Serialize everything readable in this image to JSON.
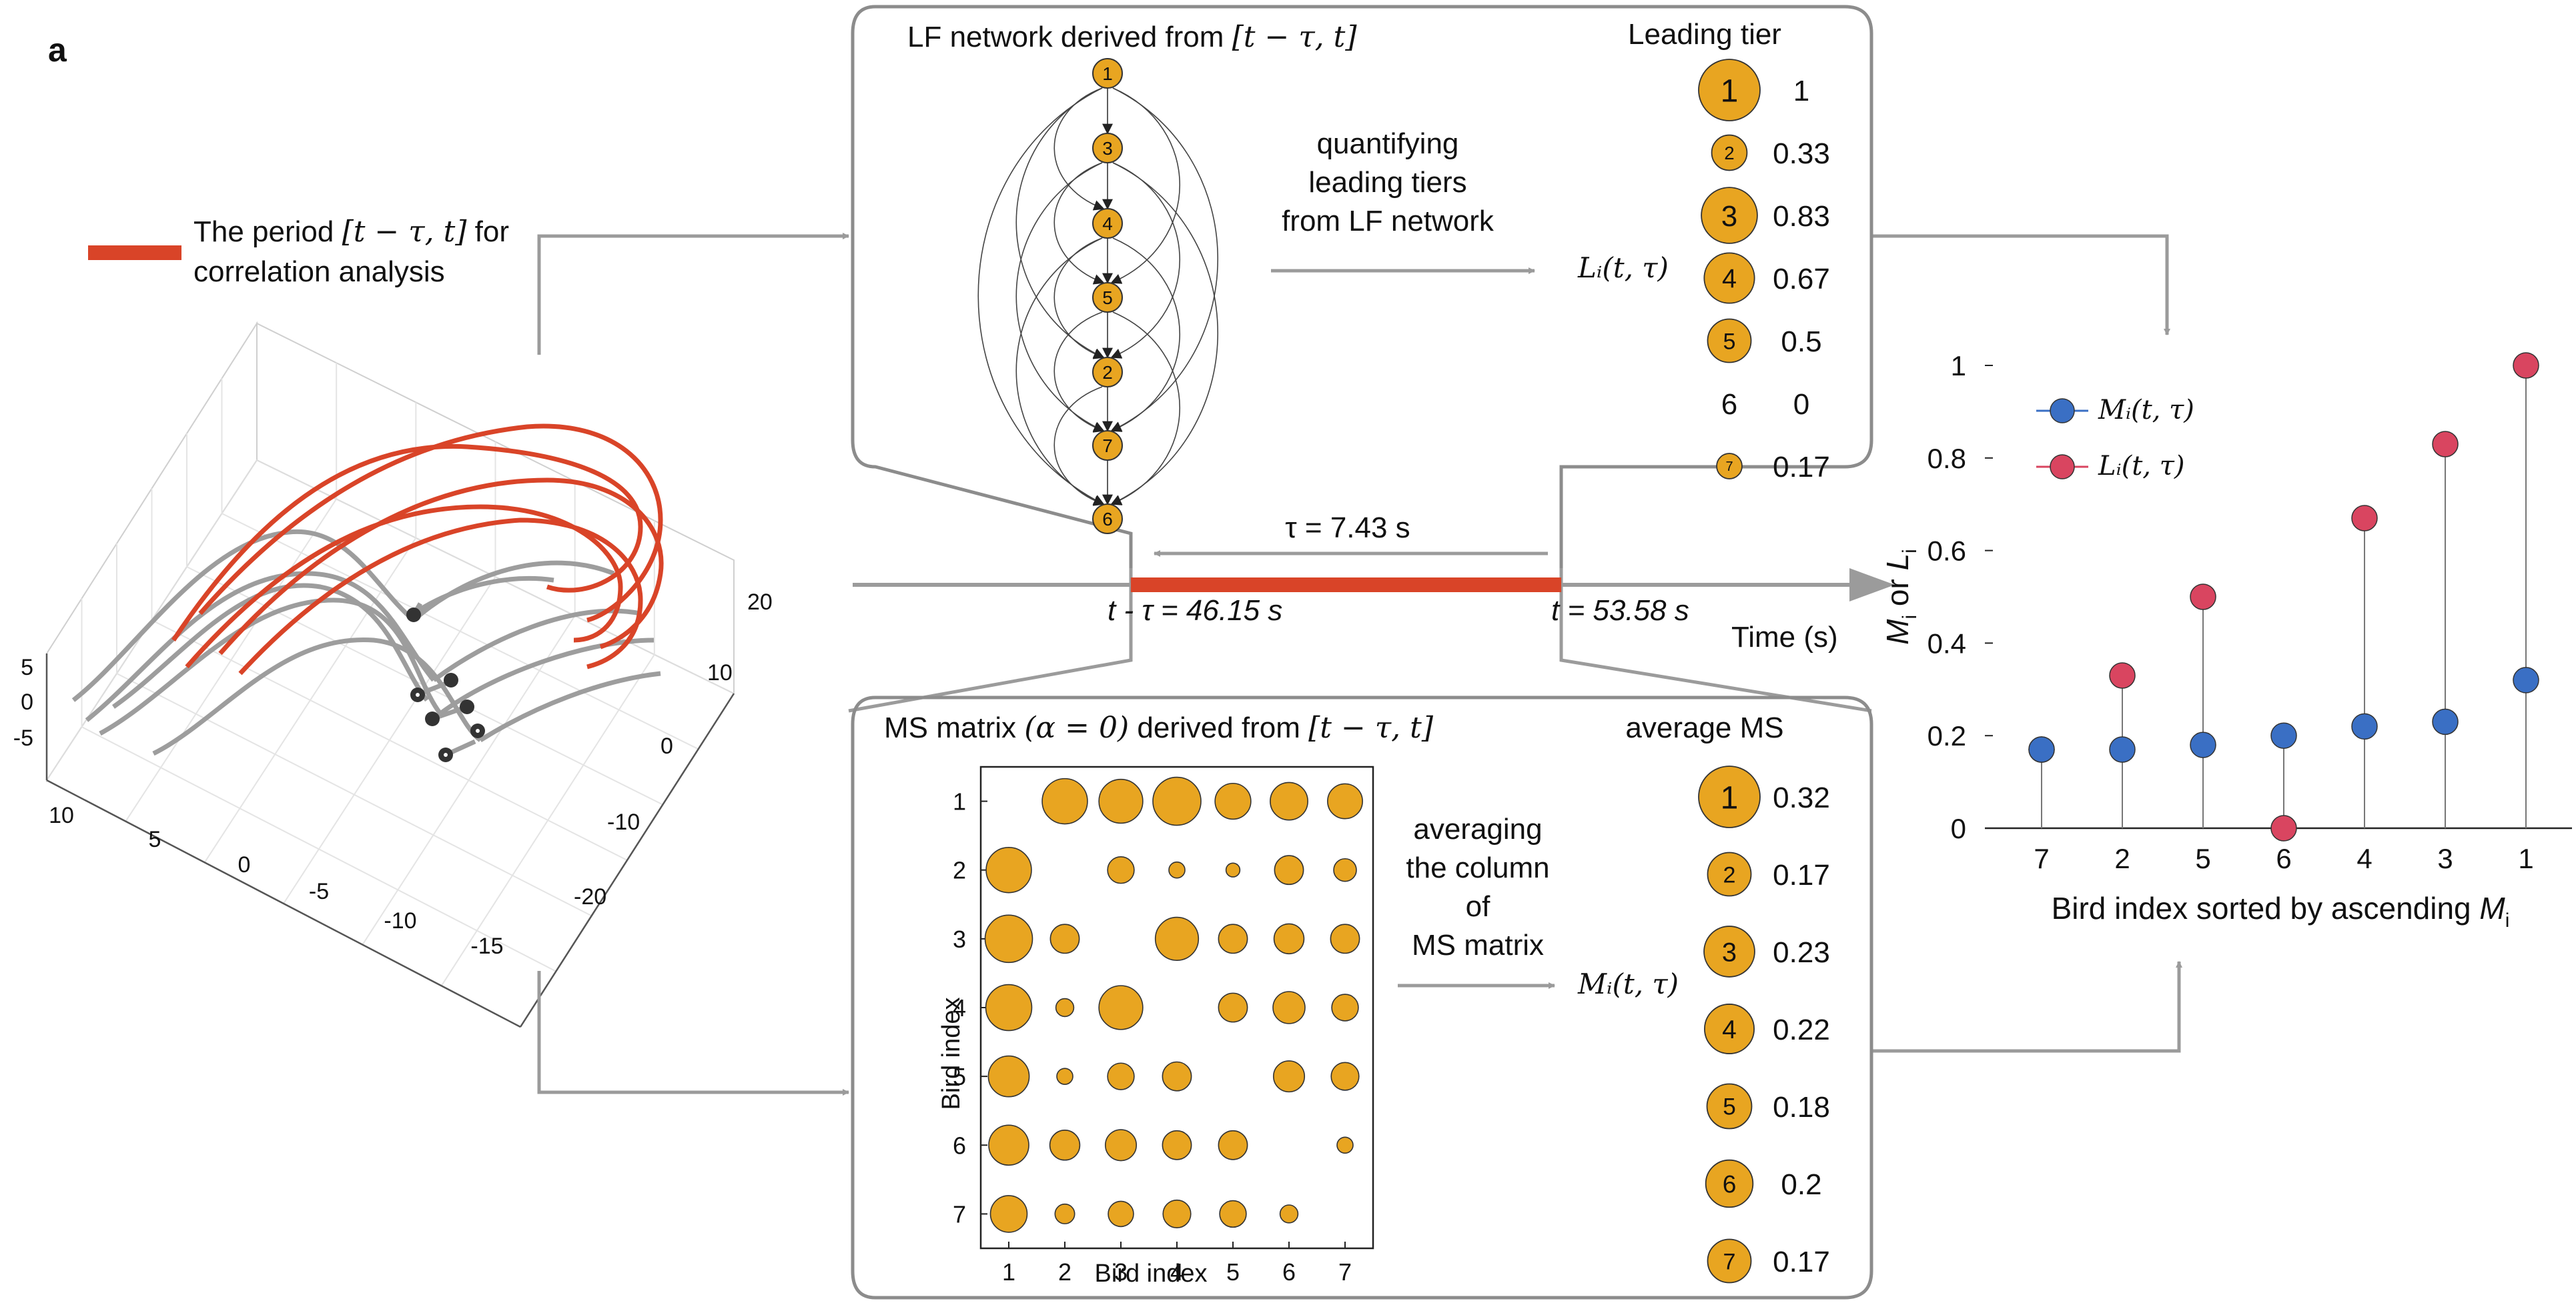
{
  "panel_label": "a",
  "legend3d": {
    "line1": "The period",
    "math": "[t − τ, t]",
    "suffix": " for",
    "line2": "correlation analysis",
    "color": "#d94428"
  },
  "axes3d": {
    "z_ticks": [
      "5",
      "0",
      "-5"
    ],
    "x_ticks": [
      "10",
      "5",
      "0",
      "-5",
      "-10",
      "-15"
    ],
    "y_ticks": [
      "20",
      "10",
      "0",
      "-10",
      "-20"
    ]
  },
  "lf": {
    "title": "LF network derived from",
    "title_math": "[t − τ, t]",
    "nodes": [
      "1",
      "3",
      "4",
      "5",
      "2",
      "7",
      "6"
    ],
    "action": [
      "quantifying",
      "leading tiers",
      "from LF network"
    ],
    "output_symbol": "Lᵢ(t, τ)",
    "tier_header": "Leading tier",
    "tiers": [
      {
        "bird": "1",
        "value": "1",
        "size": 1
      },
      {
        "bird": "2",
        "value": "0.33",
        "size": 0.33
      },
      {
        "bird": "3",
        "value": "0.83",
        "size": 0.83
      },
      {
        "bird": "4",
        "value": "0.67",
        "size": 0.67
      },
      {
        "bird": "5",
        "value": "0.5",
        "size": 0.5
      },
      {
        "bird": "6",
        "value": "0",
        "size": 0
      },
      {
        "bird": "7",
        "value": "0.17",
        "size": 0.17
      }
    ]
  },
  "timeline": {
    "tau_label": "τ = 7.43 s",
    "start_label": "t - τ = 46.15 s",
    "end_label": "t = 53.58 s",
    "axis_label": "Time (s)"
  },
  "ms": {
    "title": "MS matrix",
    "alpha": "(α = 0)",
    "derived": "derived from",
    "title_math": "[t − τ, t]",
    "xlabel": "Bird index",
    "ylabel": "Bird index",
    "ticks": [
      "1",
      "2",
      "3",
      "4",
      "5",
      "6",
      "7"
    ],
    "matrix": [
      [
        0,
        0.32,
        0.3,
        0.36,
        0.2,
        0.22,
        0.19
      ],
      [
        0.32,
        0,
        0.11,
        0.04,
        0.03,
        0.13,
        0.08
      ],
      [
        0.35,
        0.13,
        0,
        0.29,
        0.13,
        0.14,
        0.13
      ],
      [
        0.33,
        0.05,
        0.3,
        0,
        0.13,
        0.16,
        0.11
      ],
      [
        0.26,
        0.04,
        0.11,
        0.13,
        0,
        0.15,
        0.12
      ],
      [
        0.25,
        0.14,
        0.15,
        0.13,
        0.13,
        0,
        0.04
      ],
      [
        0.21,
        0.06,
        0.1,
        0.12,
        0.11,
        0.05,
        0
      ]
    ],
    "action": [
      "averaging",
      "the column",
      "of",
      "MS matrix"
    ],
    "output_symbol": "Mᵢ(t, τ)",
    "avg_header": "average MS",
    "averages": [
      {
        "bird": "1",
        "value": "0.32",
        "size": 1
      },
      {
        "bird": "2",
        "value": "0.17",
        "size": 0.5
      },
      {
        "bird": "3",
        "value": "0.23",
        "size": 0.68
      },
      {
        "bird": "4",
        "value": "0.22",
        "size": 0.65
      },
      {
        "bird": "5",
        "value": "0.18",
        "size": 0.53
      },
      {
        "bird": "6",
        "value": "0.2",
        "size": 0.59
      },
      {
        "bird": "7",
        "value": "0.17",
        "size": 0.5
      }
    ]
  },
  "chart_data": {
    "type": "scatter",
    "categories": [
      "7",
      "2",
      "5",
      "6",
      "4",
      "3",
      "1"
    ],
    "series": [
      {
        "name": "Mᵢ(t, τ)",
        "color": "#3a6fc4",
        "values": [
          0.17,
          0.17,
          0.18,
          0.2,
          0.22,
          0.23,
          0.32
        ]
      },
      {
        "name": "Lᵢ(t, τ)",
        "color": "#d94560",
        "values": [
          0.17,
          0.33,
          0.5,
          0,
          0.67,
          0.83,
          1
        ]
      }
    ],
    "y_ticks": [
      "0",
      "0.2",
      "0.4",
      "0.6",
      "0.8",
      "1"
    ],
    "ylim": [
      0,
      1
    ],
    "xlabel": "Bird index sorted by ascending",
    "xlabel_var": "M",
    "xlabel_sub": "i",
    "ylabel_a": "M",
    "ylabel_sub_a": "i",
    "ylabel_mid": " or ",
    "ylabel_b": "L",
    "ylabel_sub_b": "i",
    "legend_placement": "top-left"
  }
}
